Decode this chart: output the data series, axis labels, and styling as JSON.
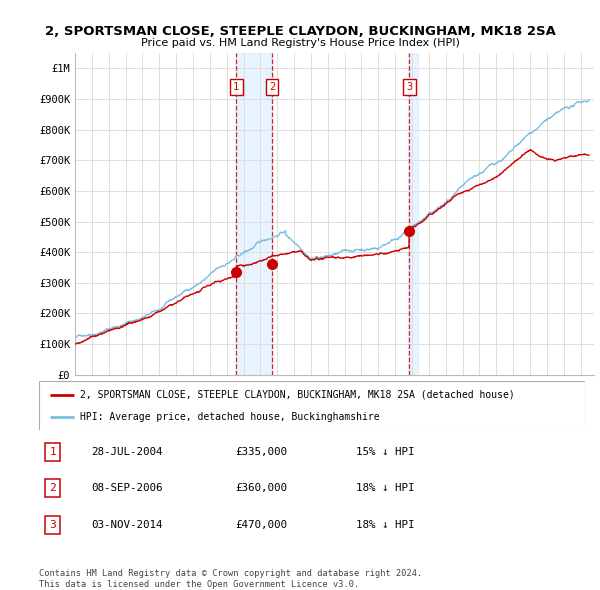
{
  "title": "2, SPORTSMAN CLOSE, STEEPLE CLAYDON, BUCKINGHAM, MK18 2SA",
  "subtitle": "Price paid vs. HM Land Registry's House Price Index (HPI)",
  "ylim": [
    0,
    1050000
  ],
  "yticks": [
    0,
    100000,
    200000,
    300000,
    400000,
    500000,
    600000,
    700000,
    800000,
    900000,
    1000000
  ],
  "ytick_labels": [
    "£0",
    "£100K",
    "£200K",
    "£300K",
    "£400K",
    "£500K",
    "£600K",
    "£700K",
    "£800K",
    "£900K",
    "£1M"
  ],
  "hpi_color": "#7bbde0",
  "sale_color": "#cc0000",
  "vline_color": "#cc0000",
  "shade_color": "#ddeeff",
  "grid_color": "#dddddd",
  "xmin": 1995.0,
  "xmax": 2025.8,
  "sales": [
    {
      "date_num": 2004.57,
      "price": 335000,
      "label": "1"
    },
    {
      "date_num": 2006.69,
      "price": 360000,
      "label": "2"
    },
    {
      "date_num": 2014.84,
      "price": 470000,
      "label": "3"
    }
  ],
  "sale_label_info": [
    {
      "label": "1",
      "date": "28-JUL-2004",
      "price": "£335,000",
      "hpi": "15% ↓ HPI"
    },
    {
      "label": "2",
      "date": "08-SEP-2006",
      "price": "£360,000",
      "hpi": "18% ↓ HPI"
    },
    {
      "label": "3",
      "date": "03-NOV-2014",
      "price": "£470,000",
      "hpi": "18% ↓ HPI"
    }
  ],
  "legend_red_label": "2, SPORTSMAN CLOSE, STEEPLE CLAYDON, BUCKINGHAM, MK18 2SA (detached house)",
  "legend_blue_label": "HPI: Average price, detached house, Buckinghamshire",
  "footer": "Contains HM Land Registry data © Crown copyright and database right 2024.\nThis data is licensed under the Open Government Licence v3.0."
}
